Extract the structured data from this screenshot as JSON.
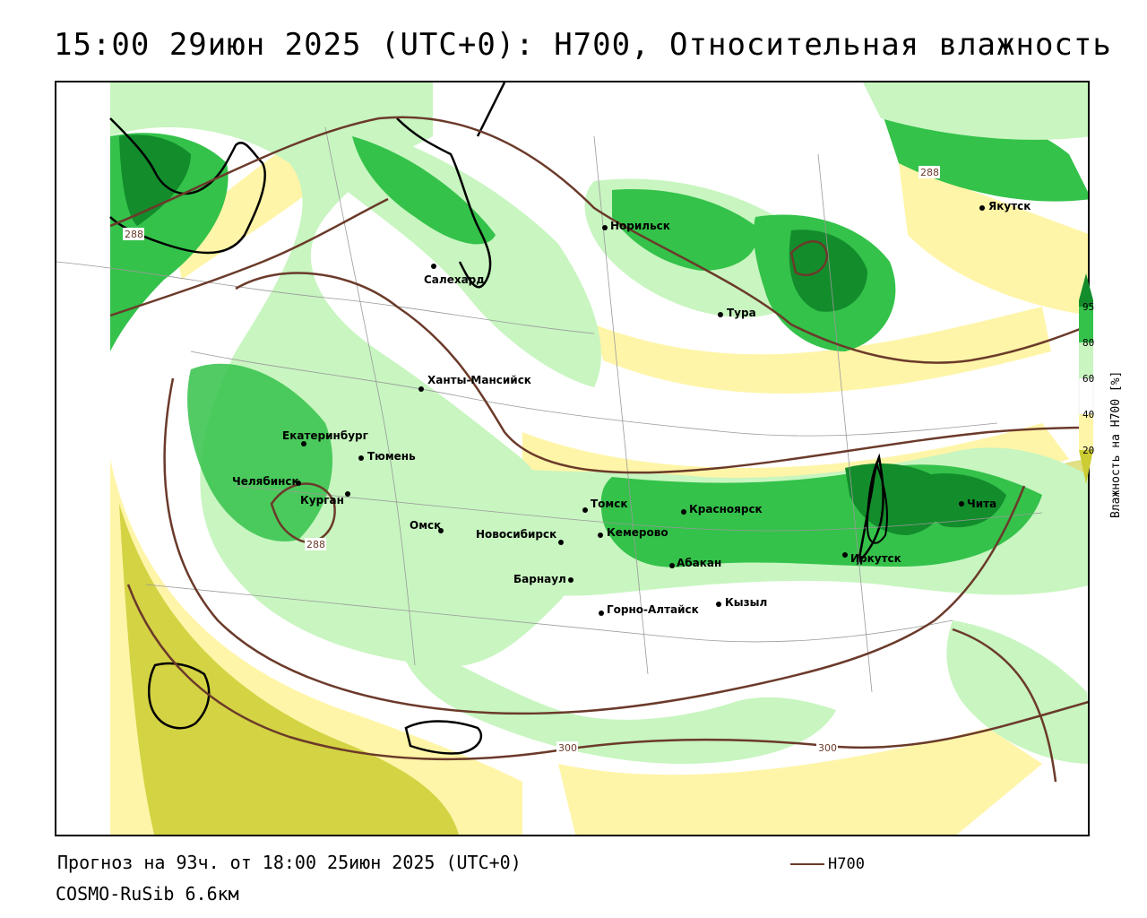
{
  "title": "15:00 29июн 2025 (UTC+0): H700, Относительная влажность",
  "footer": {
    "forecast": "Прогноз на 93ч. от 18:00 25июн 2025 (UTC+0)",
    "model": "COSMO-RuSib 6.6км"
  },
  "legend": {
    "line_label": "H700",
    "line_color": "#6b3a2a"
  },
  "colorbar": {
    "title": "Влажность на H700 [%]",
    "ticks": [
      "95",
      "80",
      "60",
      "40",
      "20"
    ],
    "colors": {
      "lt20": "#cccc33",
      "20_40": "#fff5a8",
      "40_60": "#ffffff",
      "60_80": "#c8f5c0",
      "80_95": "#34c24a",
      "gt95": "#138c2c"
    }
  },
  "contour_labels": [
    "288",
    "288",
    "288",
    "300",
    "300"
  ],
  "cities": [
    {
      "name": "Якутск"
    },
    {
      "name": "Норильск"
    },
    {
      "name": "Салехард"
    },
    {
      "name": "Тура"
    },
    {
      "name": "Ханты-Мансийск"
    },
    {
      "name": "Екатеринбург"
    },
    {
      "name": "Тюмень"
    },
    {
      "name": "Челябинск"
    },
    {
      "name": "Курган"
    },
    {
      "name": "Омск"
    },
    {
      "name": "Новосибирск"
    },
    {
      "name": "Томск"
    },
    {
      "name": "Кемерово"
    },
    {
      "name": "Красноярск"
    },
    {
      "name": "Абакан"
    },
    {
      "name": "Барнаул"
    },
    {
      "name": "Горно-Алтайск"
    },
    {
      "name": "Кызыл"
    },
    {
      "name": "Иркутск"
    },
    {
      "name": "Чита"
    }
  ]
}
